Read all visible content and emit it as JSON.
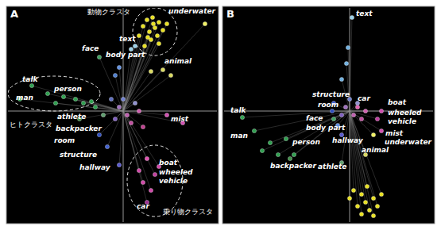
{
  "chart_data": [
    {
      "type": "scatter",
      "title": "A",
      "marker": "circle",
      "grid": true,
      "tick_labels": false,
      "xlim": [
        -145,
        118
      ],
      "ylim": [
        -140,
        130
      ],
      "xticks": [
        0
      ],
      "yticks": [
        0
      ],
      "x": [
        30,
        37,
        45,
        40,
        33,
        50,
        25,
        43,
        55,
        35,
        27,
        45,
        20,
        38,
        31,
        103,
        50,
        35,
        60,
        15,
        10,
        -30,
        -5,
        -10,
        -115,
        -130,
        -60,
        -95,
        -75,
        -50,
        -40,
        -85,
        -35,
        -25,
        -55,
        -30,
        -20,
        -5,
        55,
        75,
        -5,
        5,
        -10,
        15,
        10,
        0,
        20,
        -15,
        25,
        30,
        40,
        30,
        25,
        35,
        45,
        20
      ],
      "y": [
        115,
        118,
        112,
        105,
        100,
        102,
        107,
        95,
        110,
        90,
        82,
        85,
        95,
        110,
        93,
        110,
        52,
        50,
        45,
        82,
        78,
        68,
        55,
        45,
        32,
        15,
        15,
        22,
        18,
        10,
        12,
        10,
        5,
        -5,
        -10,
        -30,
        -45,
        -68,
        -5,
        -15,
        5,
        -5,
        -10,
        10,
        -15,
        15,
        0,
        15,
        -20,
        -60,
        -80,
        -115,
        -90,
        -100,
        -70,
        -75
      ],
      "colors": [
        "#e8e020",
        "#e8e020",
        "#e8e020",
        "#e8e020",
        "#e8e020",
        "#e8e020",
        "#e8e020",
        "#e8e020",
        "#e8e020",
        "#e8e020",
        "#e8e020",
        "#e8e020",
        "#e8e020",
        "#e8e020",
        "#e8e020",
        "#f0f060",
        "#d8d860",
        "#d8d860",
        "#d8d860",
        "#9ad0e8",
        "#9ad0e8",
        "#40a060",
        "#6090e0",
        "#5080d0",
        "#30a050",
        "#30a050",
        "#30a050",
        "#30a050",
        "#30a050",
        "#30a050",
        "#30a050",
        "#30a050",
        "#30a050",
        "#60a070",
        "#40904a",
        "#3050c0",
        "#4060d0",
        "#5a5ad0",
        "#d050b0",
        "#d050b0",
        "#a070c0",
        "#c060b0",
        "#8060c0",
        "#9090d0",
        "#c050a0",
        "#7080d0",
        "#d060b0",
        "#6070c0",
        "#c04090",
        "#e050b0",
        "#c040a0",
        "#a03090",
        "#d048a8",
        "#d048a8",
        "#d048a8",
        "#d048a8"
      ],
      "annotations": [
        {
          "text": "underwater",
          "x": 57,
          "y": 123
        },
        {
          "text": "text",
          "x": -5,
          "y": 88
        },
        {
          "text": "face",
          "x": -52,
          "y": 76
        },
        {
          "text": "body part",
          "x": -22,
          "y": 68
        },
        {
          "text": "animal",
          "x": 52,
          "y": 60
        },
        {
          "text": "talk",
          "x": -127,
          "y": 37
        },
        {
          "text": "man",
          "x": -135,
          "y": 14
        },
        {
          "text": "person",
          "x": -87,
          "y": 25
        },
        {
          "text": "athlete",
          "x": -83,
          "y": -10
        },
        {
          "text": "backpacker",
          "x": -85,
          "y": -25
        },
        {
          "text": "room",
          "x": -87,
          "y": -40
        },
        {
          "text": "structure",
          "x": -80,
          "y": -58
        },
        {
          "text": "hallway",
          "x": -55,
          "y": -74
        },
        {
          "text": "mist",
          "x": 60,
          "y": -13
        },
        {
          "text": "boat",
          "x": 45,
          "y": -68
        },
        {
          "text": "wheeled vehicle",
          "x": 45,
          "y": -80
        },
        {
          "text": "car",
          "x": 17,
          "y": -123
        }
      ],
      "clusters": [
        {
          "label": "動物クラスタ",
          "label_x": -45,
          "label_y": 122,
          "cx": 40,
          "cy": 100,
          "rx": 28,
          "ry": 30
        },
        {
          "label": "ヒトクラスタ",
          "label_x": -143,
          "label_y": -20,
          "cx": -87,
          "cy": 22,
          "rx": 58,
          "ry": 22
        },
        {
          "label": "乗り物クラスタ",
          "label_x": 50,
          "label_y": -130,
          "cx": 40,
          "cy": -88,
          "rx": 35,
          "ry": 45
        }
      ]
    },
    {
      "type": "scatter",
      "title": "B",
      "marker": "circle",
      "grid": true,
      "tick_labels": false,
      "xlim": [
        -158,
        105
      ],
      "ylim": [
        -140,
        130
      ],
      "xticks": [
        0
      ],
      "yticks": [
        0
      ],
      "x": [
        3,
        -2,
        -4,
        -10,
        10,
        40,
        35,
        40,
        30,
        -20,
        -22,
        -135,
        -20,
        -15,
        -10,
        -120,
        -80,
        -100,
        -90,
        -70,
        -110,
        -75,
        -10,
        20,
        5,
        15,
        20,
        30,
        10,
        25,
        35,
        15,
        0,
        40,
        22,
        30,
        -5,
        5,
        10,
        -10,
        15,
        0,
        20
      ],
      "y": [
        118,
        80,
        60,
        40,
        5,
        0,
        -10,
        -25,
        -30,
        10,
        0,
        -8,
        -10,
        -18,
        -30,
        -25,
        -35,
        -40,
        -55,
        -55,
        -50,
        -60,
        -65,
        -55,
        -100,
        -105,
        -115,
        -110,
        -120,
        -125,
        -120,
        -130,
        -110,
        -105,
        -95,
        -132,
        5,
        -5,
        10,
        -5,
        -10,
        15,
        0
      ],
      "colors": [
        "#9ad0e8",
        "#70b0e0",
        "#70b0e0",
        "#70b0e0",
        "#e060b0",
        "#d050b0",
        "#c040a0",
        "#d050b0",
        "#f0f060",
        "#4060d0",
        "#3050c0",
        "#30a050",
        "#40a060",
        "#6090e0",
        "#5a5ad0",
        "#30a050",
        "#30a050",
        "#30a050",
        "#30a050",
        "#30a050",
        "#30a050",
        "#40904a",
        "#60a070",
        "#d8d860",
        "#e8e020",
        "#e8e020",
        "#e8e020",
        "#e8e020",
        "#e8e020",
        "#e8e020",
        "#e8e020",
        "#e8e020",
        "#e8e020",
        "#e8e020",
        "#e8e020",
        "#e8e020",
        "#a070c0",
        "#c060b0",
        "#9090d0",
        "#8060c0",
        "#c050a0",
        "#7080d0",
        "#d060b0"
      ],
      "annotations": [
        {
          "text": "text",
          "x": 8,
          "y": 120
        },
        {
          "text": "car",
          "x": 10,
          "y": 13
        },
        {
          "text": "boat",
          "x": 48,
          "y": 8
        },
        {
          "text": "wheeled vehicle",
          "x": 48,
          "y": -5
        },
        {
          "text": "mist",
          "x": 45,
          "y": -31
        },
        {
          "text": "underwater",
          "x": 44,
          "y": -42
        },
        {
          "text": "structure",
          "x": -47,
          "y": 18
        },
        {
          "text": "room",
          "x": -40,
          "y": 5
        },
        {
          "text": "talk",
          "x": -150,
          "y": -2
        },
        {
          "text": "face",
          "x": -55,
          "y": -12
        },
        {
          "text": "body part",
          "x": -55,
          "y": -24
        },
        {
          "text": "hallway",
          "x": -22,
          "y": -40
        },
        {
          "text": "man",
          "x": -150,
          "y": -34
        },
        {
          "text": "person",
          "x": -72,
          "y": -42
        },
        {
          "text": "backpacker",
          "x": -100,
          "y": -72
        },
        {
          "text": "athlete",
          "x": -40,
          "y": -73
        },
        {
          "text": "animal",
          "x": 15,
          "y": -52
        }
      ]
    }
  ]
}
